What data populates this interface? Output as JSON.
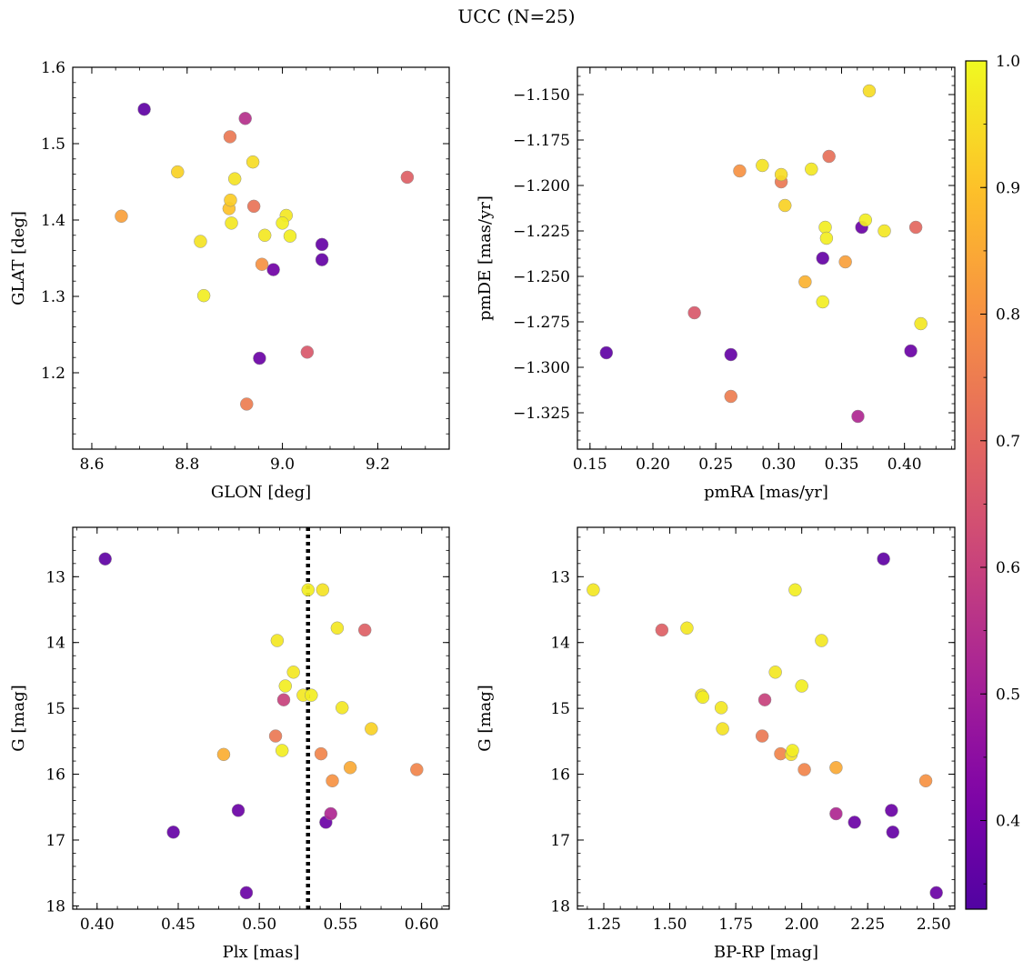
{
  "figure": {
    "title": "UCC (N=25)"
  },
  "colorbar": {
    "colormap": "plasma",
    "range": [
      0.33,
      1.0
    ],
    "ticks": [
      "0.4",
      "0.5",
      "0.6",
      "0.7",
      "0.8",
      "0.9",
      "1.0"
    ],
    "tick_values": [
      0.4,
      0.5,
      0.6,
      0.7,
      0.8,
      0.9,
      1.0
    ]
  },
  "chart_data": [
    {
      "type": "scatter",
      "id": "glon-glat",
      "xlabel": "GLON [deg]",
      "ylabel": "GLAT [deg]",
      "xlim": [
        8.56,
        9.35
      ],
      "ylim": [
        1.1,
        1.6
      ],
      "y_inverted": false,
      "xticks": [
        8.6,
        8.8,
        9.0,
        9.2
      ],
      "xtick_labels": [
        "8.6",
        "8.8",
        "9.0",
        "9.2"
      ],
      "yticks": [
        1.2,
        1.3,
        1.4,
        1.5,
        1.6
      ],
      "ytick_labels": [
        "1.2",
        "1.3",
        "1.4",
        "1.5",
        "1.6"
      ],
      "points": [
        {
          "x": 8.71,
          "y": 1.545,
          "p": 0.36
        },
        {
          "x": 8.922,
          "y": 1.533,
          "p": 0.55
        },
        {
          "x": 8.89,
          "y": 1.509,
          "p": 0.74
        },
        {
          "x": 8.78,
          "y": 1.463,
          "p": 0.93
        },
        {
          "x": 8.938,
          "y": 1.476,
          "p": 0.95
        },
        {
          "x": 8.9,
          "y": 1.454,
          "p": 0.96
        },
        {
          "x": 9.262,
          "y": 1.456,
          "p": 0.68
        },
        {
          "x": 8.891,
          "y": 1.426,
          "p": 0.92
        },
        {
          "x": 8.888,
          "y": 1.415,
          "p": 0.9
        },
        {
          "x": 8.94,
          "y": 1.418,
          "p": 0.73
        },
        {
          "x": 8.662,
          "y": 1.405,
          "p": 0.83
        },
        {
          "x": 9.008,
          "y": 1.406,
          "p": 0.97
        },
        {
          "x": 8.893,
          "y": 1.396,
          "p": 0.97
        },
        {
          "x": 9.0,
          "y": 1.396,
          "p": 0.98
        },
        {
          "x": 8.963,
          "y": 1.38,
          "p": 0.97
        },
        {
          "x": 9.016,
          "y": 1.379,
          "p": 0.98
        },
        {
          "x": 8.828,
          "y": 1.372,
          "p": 0.96
        },
        {
          "x": 9.083,
          "y": 1.368,
          "p": 0.37
        },
        {
          "x": 8.957,
          "y": 1.342,
          "p": 0.8
        },
        {
          "x": 9.083,
          "y": 1.348,
          "p": 0.37
        },
        {
          "x": 8.981,
          "y": 1.335,
          "p": 0.39
        },
        {
          "x": 8.835,
          "y": 1.301,
          "p": 0.98
        },
        {
          "x": 9.052,
          "y": 1.227,
          "p": 0.66
        },
        {
          "x": 8.952,
          "y": 1.219,
          "p": 0.38
        },
        {
          "x": 8.925,
          "y": 1.159,
          "p": 0.75
        }
      ]
    },
    {
      "type": "scatter",
      "id": "pmra-pmde",
      "xlabel": "pmRA [mas/yr]",
      "ylabel": "pmDE [mas/yr]",
      "xlim": [
        0.14,
        0.44
      ],
      "ylim": [
        -1.345,
        -1.135
      ],
      "y_inverted": false,
      "xticks": [
        0.15,
        0.2,
        0.25,
        0.3,
        0.35,
        0.4
      ],
      "xtick_labels": [
        "0.15",
        "0.20",
        "0.25",
        "0.30",
        "0.35",
        "0.40"
      ],
      "yticks": [
        -1.325,
        -1.3,
        -1.275,
        -1.25,
        -1.225,
        -1.2,
        -1.175,
        -1.15
      ],
      "ytick_labels": [
        "−1.325",
        "−1.300",
        "−1.275",
        "−1.250",
        "−1.225",
        "−1.200",
        "−1.175",
        "−1.150"
      ],
      "points": [
        {
          "x": 0.372,
          "y": -1.148,
          "p": 0.95
        },
        {
          "x": 0.34,
          "y": -1.184,
          "p": 0.72
        },
        {
          "x": 0.269,
          "y": -1.192,
          "p": 0.8
        },
        {
          "x": 0.287,
          "y": -1.189,
          "p": 0.96
        },
        {
          "x": 0.302,
          "y": -1.194,
          "p": 0.95
        },
        {
          "x": 0.302,
          "y": -1.198,
          "p": 0.74
        },
        {
          "x": 0.326,
          "y": -1.191,
          "p": 0.97
        },
        {
          "x": 0.305,
          "y": -1.211,
          "p": 0.93
        },
        {
          "x": 0.369,
          "y": -1.219,
          "p": 0.98
        },
        {
          "x": 0.337,
          "y": -1.223,
          "p": 0.98
        },
        {
          "x": 0.366,
          "y": -1.223,
          "p": 0.38
        },
        {
          "x": 0.409,
          "y": -1.223,
          "p": 0.7
        },
        {
          "x": 0.384,
          "y": -1.225,
          "p": 0.97
        },
        {
          "x": 0.338,
          "y": -1.229,
          "p": 0.98
        },
        {
          "x": 0.335,
          "y": -1.24,
          "p": 0.37
        },
        {
          "x": 0.353,
          "y": -1.242,
          "p": 0.83
        },
        {
          "x": 0.321,
          "y": -1.253,
          "p": 0.87
        },
        {
          "x": 0.335,
          "y": -1.264,
          "p": 0.98
        },
        {
          "x": 0.233,
          "y": -1.27,
          "p": 0.66
        },
        {
          "x": 0.413,
          "y": -1.276,
          "p": 0.97
        },
        {
          "x": 0.163,
          "y": -1.292,
          "p": 0.36
        },
        {
          "x": 0.262,
          "y": -1.293,
          "p": 0.37
        },
        {
          "x": 0.405,
          "y": -1.291,
          "p": 0.38
        },
        {
          "x": 0.262,
          "y": -1.316,
          "p": 0.75
        },
        {
          "x": 0.363,
          "y": -1.327,
          "p": 0.53
        }
      ]
    },
    {
      "type": "scatter",
      "id": "plx-g",
      "xlabel": "Plx [mas]",
      "ylabel": "G [mag]",
      "xlim": [
        0.385,
        0.617
      ],
      "ylim": [
        12.25,
        18.05
      ],
      "y_inverted": true,
      "vline": {
        "x": 0.53
      },
      "xticks": [
        0.4,
        0.45,
        0.5,
        0.55,
        0.6
      ],
      "xtick_labels": [
        "0.40",
        "0.45",
        "0.50",
        "0.55",
        "0.60"
      ],
      "yticks": [
        13,
        14,
        15,
        16,
        17,
        18
      ],
      "ytick_labels": [
        "13",
        "14",
        "15",
        "16",
        "17",
        "18"
      ],
      "points": [
        {
          "x": 0.405,
          "y": 12.73,
          "p": 0.36
        },
        {
          "x": 0.53,
          "y": 13.2,
          "p": 0.98
        },
        {
          "x": 0.539,
          "y": 13.2,
          "p": 0.96
        },
        {
          "x": 0.548,
          "y": 13.78,
          "p": 0.97
        },
        {
          "x": 0.565,
          "y": 13.81,
          "p": 0.68
        },
        {
          "x": 0.511,
          "y": 13.97,
          "p": 0.97
        },
        {
          "x": 0.521,
          "y": 14.45,
          "p": 0.97
        },
        {
          "x": 0.516,
          "y": 14.66,
          "p": 0.98
        },
        {
          "x": 0.527,
          "y": 14.8,
          "p": 0.97
        },
        {
          "x": 0.532,
          "y": 14.8,
          "p": 0.98
        },
        {
          "x": 0.515,
          "y": 14.87,
          "p": 0.6
        },
        {
          "x": 0.551,
          "y": 14.99,
          "p": 0.97
        },
        {
          "x": 0.569,
          "y": 15.31,
          "p": 0.93
        },
        {
          "x": 0.51,
          "y": 15.42,
          "p": 0.74
        },
        {
          "x": 0.514,
          "y": 15.64,
          "p": 0.98
        },
        {
          "x": 0.538,
          "y": 15.69,
          "p": 0.77
        },
        {
          "x": 0.478,
          "y": 15.7,
          "p": 0.86
        },
        {
          "x": 0.556,
          "y": 15.9,
          "p": 0.85
        },
        {
          "x": 0.597,
          "y": 15.93,
          "p": 0.77
        },
        {
          "x": 0.545,
          "y": 16.1,
          "p": 0.8
        },
        {
          "x": 0.487,
          "y": 16.55,
          "p": 0.38
        },
        {
          "x": 0.544,
          "y": 16.6,
          "p": 0.53
        },
        {
          "x": 0.541,
          "y": 16.73,
          "p": 0.38
        },
        {
          "x": 0.447,
          "y": 16.88,
          "p": 0.37
        },
        {
          "x": 0.492,
          "y": 17.8,
          "p": 0.38
        }
      ]
    },
    {
      "type": "scatter",
      "id": "bprp-g",
      "xlabel": "BP-RP [mag]",
      "ylabel": "G [mag]",
      "xlim": [
        1.15,
        2.58
      ],
      "ylim": [
        12.25,
        18.05
      ],
      "y_inverted": true,
      "xticks": [
        1.25,
        1.5,
        1.75,
        2.0,
        2.25,
        2.5
      ],
      "xtick_labels": [
        "1.25",
        "1.50",
        "1.75",
        "2.00",
        "2.25",
        "2.50"
      ],
      "yticks": [
        13,
        14,
        15,
        16,
        17,
        18
      ],
      "ytick_labels": [
        "13",
        "14",
        "15",
        "16",
        "17",
        "18"
      ],
      "points": [
        {
          "x": 2.31,
          "y": 12.73,
          "p": 0.36
        },
        {
          "x": 1.21,
          "y": 13.2,
          "p": 0.97
        },
        {
          "x": 1.975,
          "y": 13.2,
          "p": 0.98
        },
        {
          "x": 1.47,
          "y": 13.81,
          "p": 0.68
        },
        {
          "x": 1.565,
          "y": 13.78,
          "p": 0.97
        },
        {
          "x": 2.075,
          "y": 13.97,
          "p": 0.97
        },
        {
          "x": 1.9,
          "y": 14.45,
          "p": 0.97
        },
        {
          "x": 2.0,
          "y": 14.66,
          "p": 0.98
        },
        {
          "x": 1.62,
          "y": 14.8,
          "p": 0.96
        },
        {
          "x": 1.625,
          "y": 14.83,
          "p": 0.98
        },
        {
          "x": 1.86,
          "y": 14.87,
          "p": 0.6
        },
        {
          "x": 1.695,
          "y": 14.99,
          "p": 0.97
        },
        {
          "x": 1.7,
          "y": 15.31,
          "p": 0.96
        },
        {
          "x": 1.85,
          "y": 15.42,
          "p": 0.74
        },
        {
          "x": 1.965,
          "y": 15.64,
          "p": 0.98
        },
        {
          "x": 1.96,
          "y": 15.7,
          "p": 0.96
        },
        {
          "x": 1.92,
          "y": 15.69,
          "p": 0.77
        },
        {
          "x": 2.13,
          "y": 15.9,
          "p": 0.85
        },
        {
          "x": 2.01,
          "y": 15.93,
          "p": 0.77
        },
        {
          "x": 2.47,
          "y": 16.1,
          "p": 0.8
        },
        {
          "x": 2.34,
          "y": 16.55,
          "p": 0.38
        },
        {
          "x": 2.13,
          "y": 16.6,
          "p": 0.53
        },
        {
          "x": 2.2,
          "y": 16.73,
          "p": 0.38
        },
        {
          "x": 2.345,
          "y": 16.88,
          "p": 0.37
        },
        {
          "x": 2.51,
          "y": 17.8,
          "p": 0.38
        }
      ]
    }
  ]
}
